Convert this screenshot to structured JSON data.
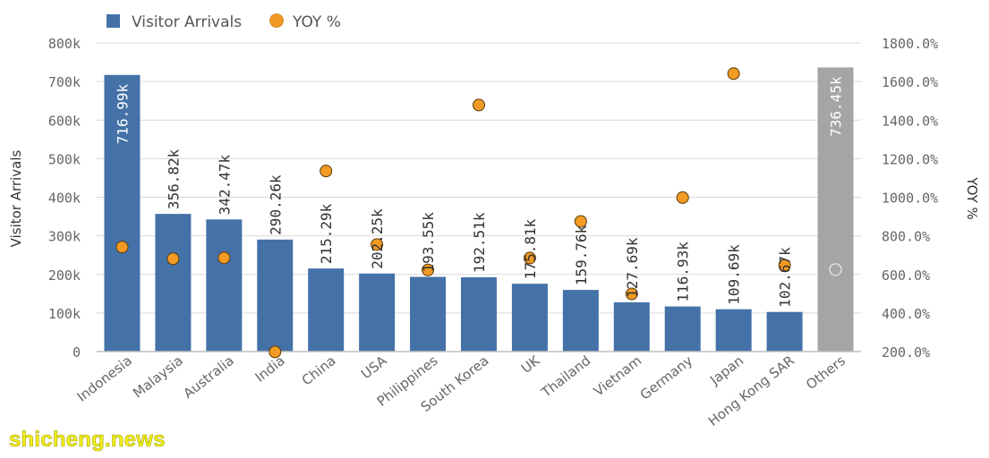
{
  "chart_data": {
    "type": "bar",
    "categories": [
      "Indonesia",
      "Malaysia",
      "Australia",
      "India",
      "China",
      "USA",
      "Philippines",
      "South Korea",
      "UK",
      "Thailand",
      "Vietnam",
      "Germany",
      "Japan",
      "Hong Kong SAR",
      "Others"
    ],
    "series": [
      {
        "name": "Visitor Arrivals",
        "type": "bar",
        "axis": "left",
        "values": [
          716990,
          356820,
          342470,
          290260,
          215290,
          202250,
          193550,
          192510,
          175810,
          159760,
          127690,
          116930,
          109690,
          102670,
          736450
        ],
        "labels": [
          "716.99k",
          "356.82k",
          "342.47k",
          "290.26k",
          "215.29k",
          "202.25k",
          "193.55k",
          "192.51k",
          "175.81k",
          "159.76k",
          "127.69k",
          "116.93k",
          "109.69k",
          "102.67k",
          "736.45k"
        ],
        "colors": [
          "#4472a8",
          "#4472a8",
          "#4472a8",
          "#4472a8",
          "#4472a8",
          "#4472a8",
          "#4472a8",
          "#4472a8",
          "#4472a8",
          "#4472a8",
          "#4472a8",
          "#4472a8",
          "#4472a8",
          "#4472a8",
          "#a5a5a5"
        ]
      },
      {
        "name": "YOY %",
        "type": "scatter",
        "axis": "right",
        "color": "#f29b24",
        "values": [
          742,
          681,
          686,
          198,
          1136,
          755,
          623,
          1478,
          685,
          875,
          499,
          998,
          1641,
          647,
          625
        ],
        "hollow": [
          false,
          false,
          false,
          false,
          false,
          false,
          false,
          false,
          false,
          false,
          false,
          false,
          false,
          false,
          true
        ]
      }
    ],
    "ylabel": "Visitor Arrivals",
    "y2label": "YOY %",
    "ylim": [
      0,
      800000
    ],
    "y2lim": [
      200,
      1800
    ],
    "yticks": [
      "0",
      "100k",
      "200k",
      "300k",
      "400k",
      "500k",
      "600k",
      "700k",
      "800k"
    ],
    "y2ticks": [
      "200.0%",
      "400.0%",
      "600.0%",
      "800.0%",
      "1000.0%",
      "1200.0%",
      "1400.0%",
      "1600.0%",
      "1800.0%"
    ],
    "grid": true,
    "legend_position": "top-left"
  },
  "watermark": "shicheng.news"
}
